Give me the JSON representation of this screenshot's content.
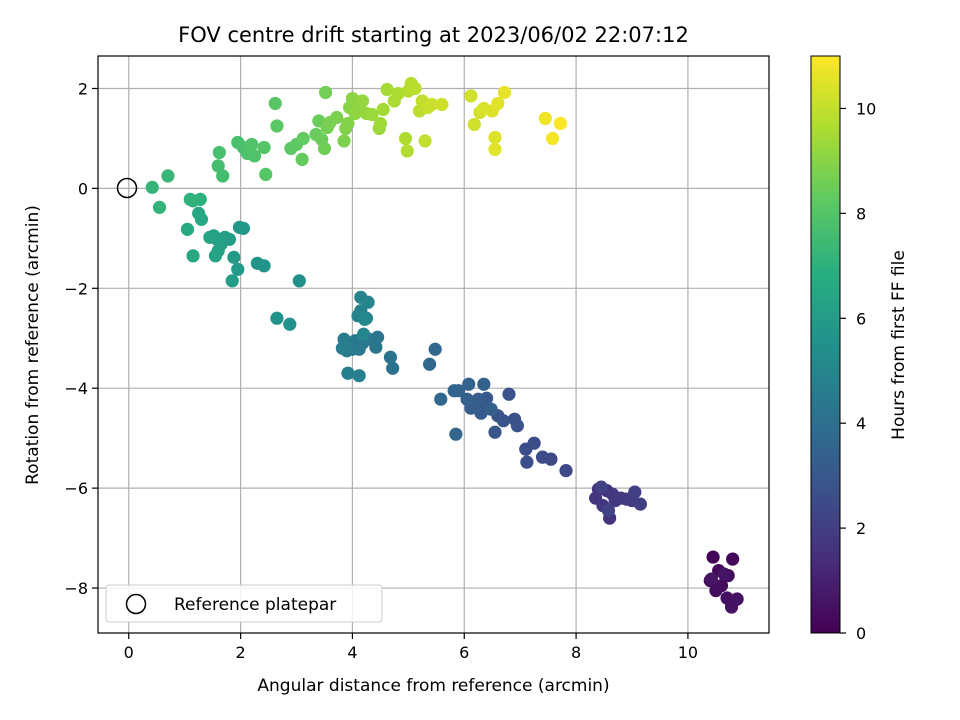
{
  "chart_data": {
    "type": "scatter",
    "title": "FOV centre drift starting at 2023/06/02 22:07:12",
    "xlabel": "Angular distance from reference (arcmin)",
    "ylabel": "Rotation from reference (arcmin)",
    "xlim": [
      -0.55,
      11.45
    ],
    "ylim": [
      -8.9,
      2.65
    ],
    "xticks": [
      0,
      2,
      4,
      6,
      8,
      10
    ],
    "yticks": [
      -8,
      -6,
      -4,
      -2,
      0,
      2
    ],
    "xtick_labels": [
      "0",
      "2",
      "4",
      "6",
      "8",
      "10"
    ],
    "ytick_labels": [
      "−8",
      "−6",
      "−4",
      "−2",
      "0",
      "2"
    ],
    "grid": true,
    "legend": {
      "placement": "lower-left",
      "entries": [
        "Reference platepar"
      ]
    },
    "colormap": "viridis",
    "colorbar": {
      "label": "Hours from first FF file",
      "range": [
        0,
        11
      ],
      "ticks": [
        0,
        2,
        4,
        6,
        8,
        10
      ],
      "tick_labels": [
        "0",
        "2",
        "4",
        "6",
        "8",
        "10"
      ]
    },
    "reference_point": {
      "name": "Reference platepar",
      "x": 0,
      "y": 0
    },
    "series": [
      {
        "marker": "filled-circle",
        "points": [
          [
            10.45,
            -7.38,
            0.1
          ],
          [
            10.8,
            -7.42,
            0.15
          ],
          [
            10.4,
            -7.85,
            0.2
          ],
          [
            10.55,
            -7.65,
            0.25
          ],
          [
            10.6,
            -7.95,
            0.3
          ],
          [
            10.72,
            -7.75,
            0.35
          ],
          [
            10.5,
            -8.05,
            0.4
          ],
          [
            10.7,
            -8.2,
            0.45
          ],
          [
            10.78,
            -8.38,
            0.5
          ],
          [
            10.88,
            -8.22,
            0.55
          ],
          [
            10.65,
            -7.72,
            0.6
          ],
          [
            10.42,
            -7.82,
            0.65
          ],
          [
            8.4,
            -6.02,
            1.5
          ],
          [
            8.55,
            -6.05,
            1.55
          ],
          [
            8.6,
            -6.6,
            1.6
          ],
          [
            8.35,
            -6.2,
            1.65
          ],
          [
            8.65,
            -6.12,
            1.7
          ],
          [
            8.48,
            -6.35,
            1.75
          ],
          [
            8.7,
            -6.25,
            1.8
          ],
          [
            8.8,
            -6.2,
            1.85
          ],
          [
            8.9,
            -6.22,
            1.9
          ],
          [
            9.0,
            -6.25,
            1.95
          ],
          [
            9.05,
            -6.08,
            2.0
          ],
          [
            9.15,
            -6.32,
            2.05
          ],
          [
            8.45,
            -5.98,
            2.1
          ],
          [
            8.58,
            -6.45,
            2.15
          ],
          [
            7.82,
            -5.65,
            2.4
          ],
          [
            7.55,
            -5.42,
            2.45
          ],
          [
            7.4,
            -5.38,
            2.5
          ],
          [
            7.25,
            -5.1,
            2.55
          ],
          [
            7.1,
            -5.22,
            2.6
          ],
          [
            7.12,
            -5.48,
            2.65
          ],
          [
            6.9,
            -4.62,
            2.7
          ],
          [
            6.95,
            -4.75,
            2.75
          ],
          [
            6.8,
            -4.12,
            2.8
          ],
          [
            6.6,
            -4.55,
            2.85
          ],
          [
            6.7,
            -4.65,
            2.9
          ],
          [
            6.55,
            -4.88,
            2.95
          ],
          [
            6.4,
            -4.2,
            3.0
          ],
          [
            6.35,
            -4.38,
            3.05
          ],
          [
            6.3,
            -4.5,
            3.1
          ],
          [
            6.25,
            -4.22,
            3.15
          ],
          [
            6.2,
            -4.3,
            3.2
          ],
          [
            6.12,
            -4.4,
            3.25
          ],
          [
            6.05,
            -4.22,
            3.3
          ],
          [
            6.35,
            -3.92,
            3.35
          ],
          [
            6.48,
            -4.42,
            3.4
          ],
          [
            6.08,
            -3.92,
            3.45
          ],
          [
            5.9,
            -4.05,
            3.5
          ],
          [
            5.82,
            -4.05,
            3.55
          ],
          [
            5.85,
            -4.92,
            3.6
          ],
          [
            5.58,
            -4.22,
            3.65
          ],
          [
            5.48,
            -3.22,
            3.7
          ],
          [
            5.38,
            -3.52,
            3.75
          ],
          [
            4.72,
            -3.6,
            4.1
          ],
          [
            4.68,
            -3.38,
            4.15
          ],
          [
            4.42,
            -3.18,
            4.2
          ],
          [
            4.45,
            -2.98,
            4.25
          ],
          [
            4.3,
            -3.02,
            4.3
          ],
          [
            4.18,
            -3.1,
            4.35
          ],
          [
            4.12,
            -3.22,
            4.4
          ],
          [
            4.05,
            -3.05,
            4.45
          ],
          [
            4.0,
            -3.22,
            4.5
          ],
          [
            3.9,
            -3.25,
            4.55
          ],
          [
            3.85,
            -3.02,
            4.6
          ],
          [
            3.82,
            -3.2,
            4.65
          ],
          [
            3.92,
            -3.7,
            4.7
          ],
          [
            4.12,
            -3.75,
            4.75
          ],
          [
            4.1,
            -2.55,
            4.8
          ],
          [
            4.15,
            -2.45,
            4.85
          ],
          [
            4.25,
            -2.6,
            4.9
          ],
          [
            4.15,
            -2.18,
            4.95
          ],
          [
            4.28,
            -2.28,
            5.0
          ],
          [
            4.2,
            -2.92,
            5.05
          ],
          [
            4.22,
            -2.62,
            5.1
          ],
          [
            3.05,
            -1.85,
            5.5
          ],
          [
            2.88,
            -2.72,
            5.55
          ],
          [
            2.65,
            -2.6,
            5.6
          ],
          [
            2.42,
            -1.55,
            5.65
          ],
          [
            2.3,
            -1.5,
            5.7
          ],
          [
            2.05,
            -0.8,
            5.8
          ],
          [
            1.98,
            -0.78,
            5.85
          ],
          [
            1.95,
            -1.62,
            5.9
          ],
          [
            1.88,
            -1.38,
            5.95
          ],
          [
            1.85,
            -1.85,
            6.0
          ],
          [
            1.8,
            -1.02,
            6.05
          ],
          [
            1.72,
            -0.98,
            6.1
          ],
          [
            1.65,
            -1.12,
            6.15
          ],
          [
            1.6,
            -1.25,
            6.2
          ],
          [
            1.58,
            -1.02,
            6.25
          ],
          [
            1.52,
            -0.95,
            6.3
          ],
          [
            1.55,
            -1.35,
            6.35
          ],
          [
            1.45,
            -0.98,
            6.4
          ],
          [
            1.3,
            -0.62,
            6.5
          ],
          [
            1.25,
            -0.5,
            6.55
          ],
          [
            1.15,
            -1.35,
            6.6
          ],
          [
            1.05,
            -0.82,
            6.7
          ],
          [
            1.28,
            -0.22,
            7.0
          ],
          [
            1.15,
            -0.25,
            7.05
          ],
          [
            1.1,
            -0.22,
            7.1
          ],
          [
            0.55,
            -0.38,
            7.15
          ],
          [
            0.42,
            0.02,
            7.2
          ],
          [
            0.7,
            0.25,
            7.3
          ],
          [
            1.68,
            0.25,
            7.6
          ],
          [
            1.6,
            0.45,
            7.65
          ],
          [
            1.62,
            0.72,
            7.7
          ],
          [
            1.95,
            0.92,
            7.75
          ],
          [
            2.05,
            0.82,
            7.8
          ],
          [
            2.12,
            0.7,
            7.85
          ],
          [
            2.25,
            0.65,
            7.9
          ],
          [
            2.2,
            0.88,
            7.95
          ],
          [
            2.42,
            0.82,
            8.0
          ],
          [
            2.45,
            0.28,
            8.05
          ],
          [
            2.62,
            1.7,
            8.1
          ],
          [
            2.65,
            1.25,
            8.15
          ],
          [
            2.9,
            0.8,
            8.2
          ],
          [
            3.0,
            0.88,
            8.25
          ],
          [
            3.12,
            1.0,
            8.3
          ],
          [
            3.1,
            0.58,
            8.35
          ],
          [
            3.35,
            1.08,
            8.4
          ],
          [
            3.4,
            1.35,
            8.45
          ],
          [
            3.45,
            0.98,
            8.5
          ],
          [
            3.5,
            0.8,
            8.55
          ],
          [
            3.52,
            1.92,
            8.6
          ],
          [
            3.55,
            1.22,
            8.65
          ],
          [
            3.6,
            1.32,
            8.7
          ],
          [
            3.72,
            1.42,
            8.75
          ],
          [
            3.85,
            0.95,
            8.8
          ],
          [
            3.88,
            1.2,
            8.85
          ],
          [
            3.92,
            1.3,
            8.9
          ],
          [
            3.95,
            1.62,
            9.0
          ],
          [
            4.0,
            1.8,
            9.05
          ],
          [
            4.05,
            1.5,
            9.1
          ],
          [
            4.12,
            1.58,
            9.15
          ],
          [
            4.18,
            1.75,
            9.2
          ],
          [
            4.25,
            1.5,
            9.25
          ],
          [
            4.35,
            1.48,
            9.3
          ],
          [
            4.48,
            1.2,
            9.35
          ],
          [
            4.5,
            1.3,
            9.4
          ],
          [
            4.55,
            1.58,
            9.45
          ],
          [
            4.62,
            1.98,
            9.5
          ],
          [
            4.75,
            1.75,
            9.55
          ],
          [
            4.82,
            1.9,
            9.6
          ],
          [
            4.95,
            1.0,
            9.65
          ],
          [
            4.98,
            0.75,
            9.7
          ],
          [
            5.0,
            1.95,
            9.75
          ],
          [
            5.05,
            2.1,
            9.8
          ],
          [
            5.12,
            2.0,
            9.85
          ],
          [
            5.2,
            1.55,
            9.9
          ],
          [
            5.25,
            1.75,
            9.95
          ],
          [
            5.3,
            0.95,
            10.0
          ],
          [
            5.35,
            1.62,
            10.05
          ],
          [
            5.42,
            1.68,
            10.1
          ],
          [
            5.6,
            1.68,
            10.15
          ],
          [
            6.12,
            1.85,
            10.2
          ],
          [
            6.18,
            1.28,
            10.25
          ],
          [
            6.28,
            1.52,
            10.3
          ],
          [
            6.35,
            1.6,
            10.35
          ],
          [
            6.5,
            1.55,
            10.4
          ],
          [
            6.55,
            1.02,
            10.45
          ],
          [
            6.55,
            0.78,
            10.5
          ],
          [
            6.6,
            1.7,
            10.55
          ],
          [
            6.72,
            1.92,
            10.6
          ],
          [
            7.45,
            1.4,
            10.75
          ],
          [
            7.58,
            1.0,
            10.85
          ],
          [
            7.72,
            1.3,
            10.95
          ]
        ]
      }
    ]
  }
}
